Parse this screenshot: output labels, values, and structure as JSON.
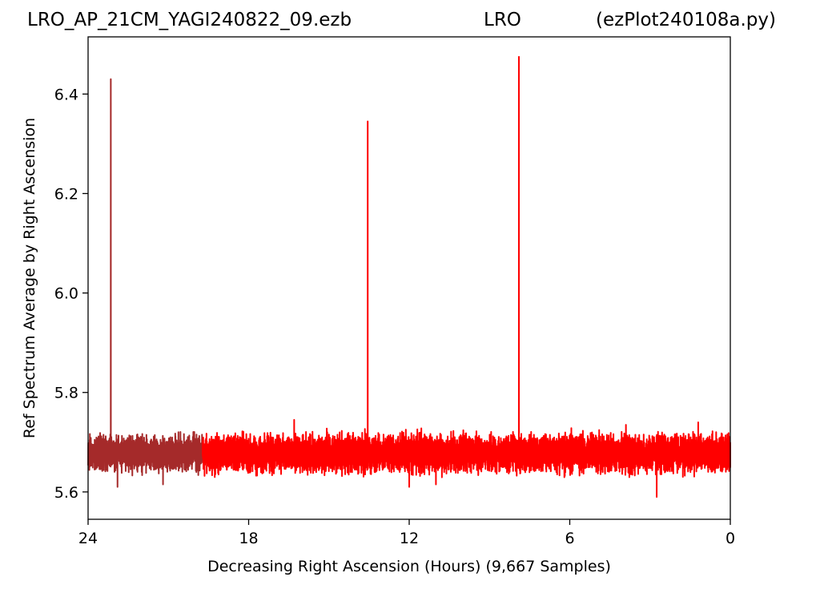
{
  "title": {
    "left": "LRO_AP_21CM_YAGI240822_09.ezb",
    "middle": "LRO",
    "right": "(ezPlot240108a.py)"
  },
  "chart_data": {
    "type": "line",
    "xlabel": "Decreasing Right Ascension (Hours) (9,667 Samples)",
    "ylabel": "Ref Spectrum Average by Right Ascension",
    "xlim": [
      24,
      0
    ],
    "ylim": [
      5.545,
      6.515
    ],
    "x_ticks": [
      24,
      18,
      12,
      6,
      0
    ],
    "y_ticks": [
      5.6,
      5.8,
      6.0,
      6.2,
      6.4
    ],
    "x_tick_labels": [
      "24",
      "18",
      "12",
      "6",
      "0"
    ],
    "y_tick_labels": [
      "5.6",
      "5.8",
      "6.0",
      "6.2",
      "6.4"
    ],
    "grid": false,
    "samples": 9667,
    "colors": {
      "early": "#a52a2a",
      "late": "#ff0000"
    },
    "series": [
      {
        "x_range": [
          24.0,
          19.72
        ],
        "baseline": 5.68,
        "noise_low": 5.63,
        "noise_high": 5.725,
        "color": "#a52a2a",
        "spikes": [
          {
            "x": 23.15,
            "y": 6.43
          },
          {
            "x": 22.9,
            "y": 5.61
          },
          {
            "x": 21.2,
            "y": 5.615
          }
        ]
      },
      {
        "x_range": [
          19.72,
          0.0
        ],
        "baseline": 5.68,
        "noise_low": 5.625,
        "noise_high": 5.73,
        "color": "#ff0000",
        "spikes": [
          {
            "x": 13.55,
            "y": 6.345
          },
          {
            "x": 7.9,
            "y": 6.475
          },
          {
            "x": 16.3,
            "y": 5.745
          },
          {
            "x": 2.75,
            "y": 5.59
          },
          {
            "x": 12.0,
            "y": 5.61
          },
          {
            "x": 11.0,
            "y": 5.615
          },
          {
            "x": 3.9,
            "y": 5.735
          },
          {
            "x": 1.2,
            "y": 5.74
          }
        ]
      }
    ]
  }
}
